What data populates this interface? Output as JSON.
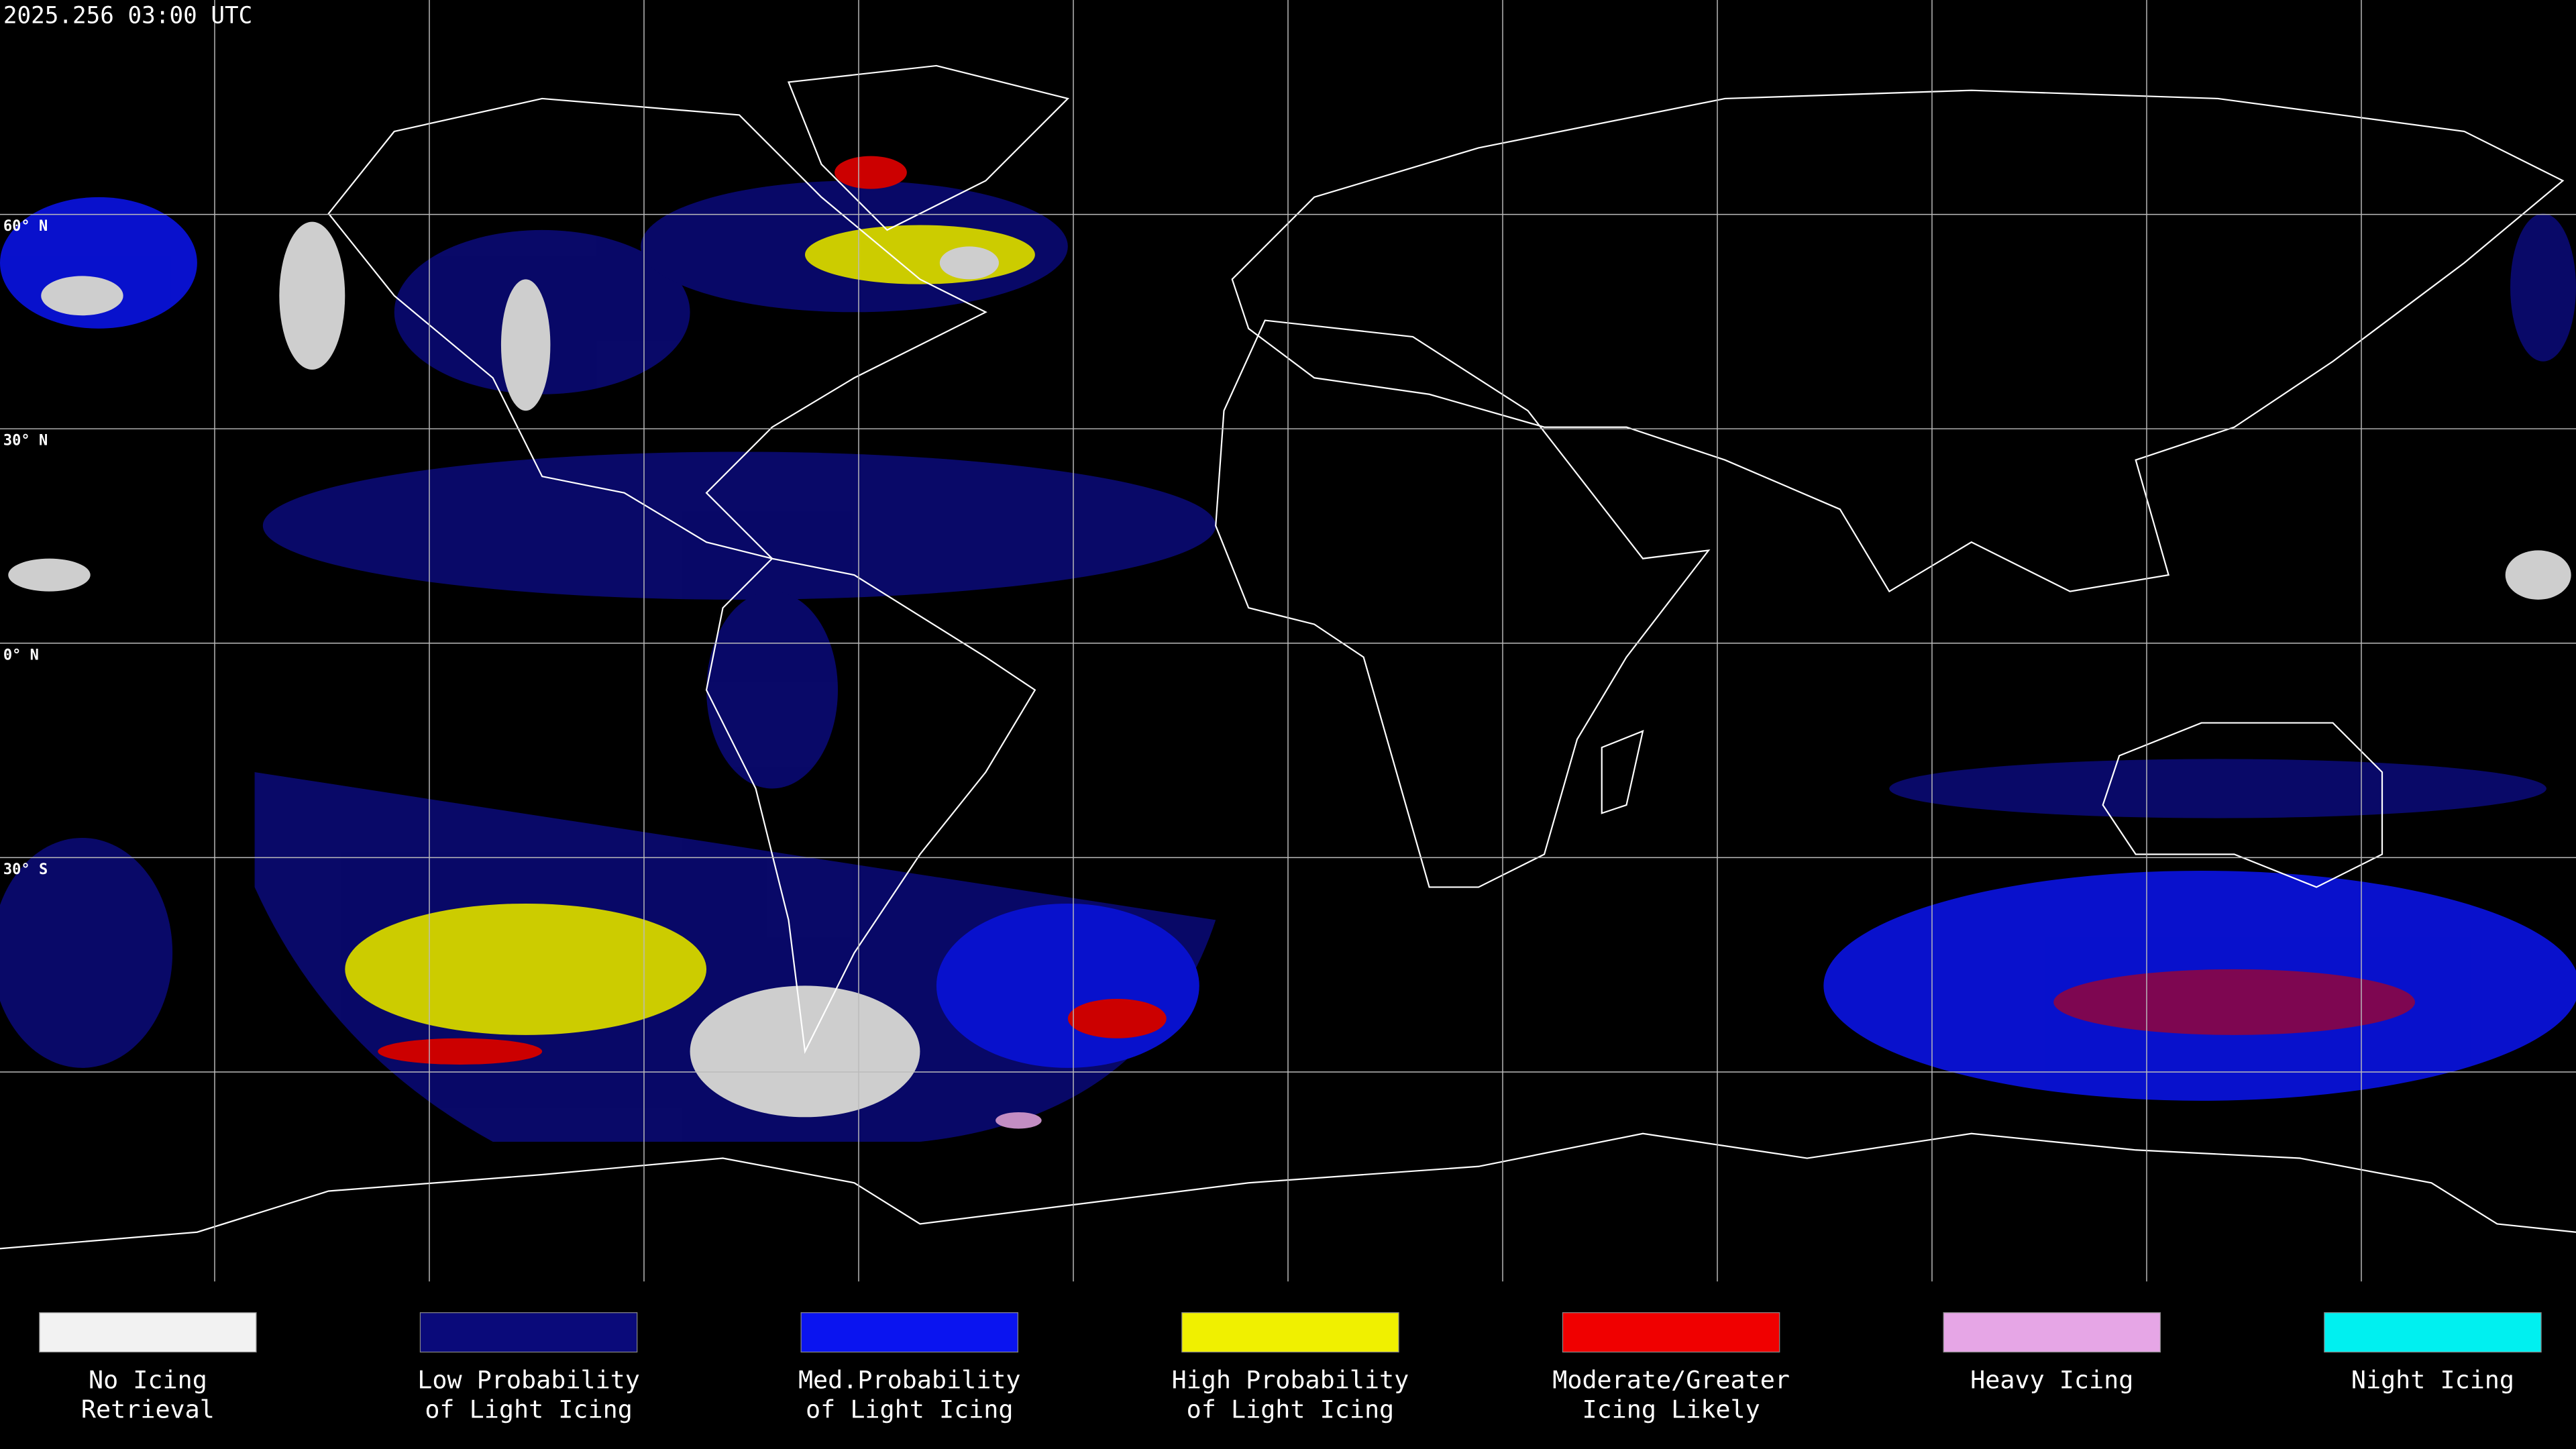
{
  "header": {
    "timestamp": "2025.256 03:00 UTC"
  },
  "latitude_labels": [
    "60° N",
    "30° N",
    "0° N",
    "30° S"
  ],
  "legend": [
    {
      "lines": [
        "No Icing",
        "Retrieval"
      ],
      "color": "#f2f2f2"
    },
    {
      "lines": [
        "Low Probability",
        "of Light Icing"
      ],
      "color": "#0a0a7a"
    },
    {
      "lines": [
        "Med.Probability",
        "of Light Icing"
      ],
      "color": "#0a14f0"
    },
    {
      "lines": [
        "High Probability",
        "of Light Icing"
      ],
      "color": "#f0f000"
    },
    {
      "lines": [
        "Moderate/Greater",
        "Icing Likely"
      ],
      "color": "#f00000"
    },
    {
      "lines": [
        "Heavy Icing"
      ],
      "color": "#e6a6e6"
    },
    {
      "lines": [
        "Night Icing"
      ],
      "color": "#00f0f0"
    }
  ]
}
